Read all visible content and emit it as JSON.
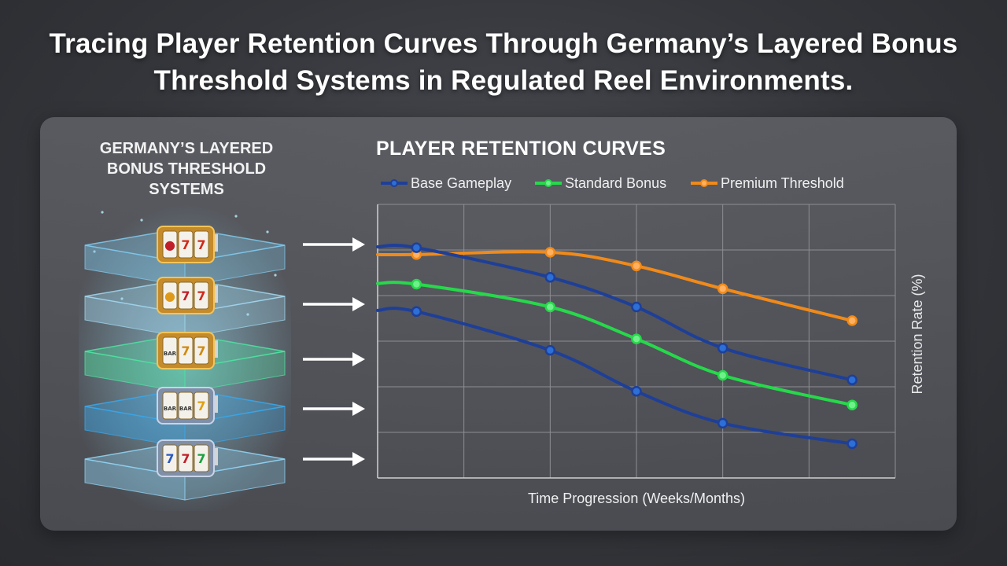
{
  "title": "Tracing Player Retention Curves Through Germany’s Layered Bonus Threshold Systems in Regulated Reel Environments.",
  "left_panel": {
    "title": "GERMANY’S LAYERED BONUS THRESHOLD SYSTEMS",
    "layers": [
      {
        "color": "#7fc6e8",
        "reel": "cherry-777"
      },
      {
        "color": "#9fd3ea",
        "reel": "fruit-777"
      },
      {
        "color": "#4fe0a0",
        "reel": "bar-777"
      },
      {
        "color": "#3aa6e8",
        "reel": "bar-bar-7"
      },
      {
        "color": "#8fd0f0",
        "reel": "777"
      }
    ]
  },
  "chart_data": {
    "type": "line",
    "title": "PLAYER RETENTION CURVES",
    "xlabel": "Time Progression (Weeks/Months)",
    "ylabel": "Retention Rate (%)",
    "x_ticks_shown": false,
    "y_ticks_shown": false,
    "grid": true,
    "legend_position": "top",
    "x": [
      0.45,
      2,
      3,
      4,
      5.5
    ],
    "series": [
      {
        "name": "Base Gameplay",
        "color": "#1f3f97",
        "marker_x": [
          0.45,
          2,
          3,
          4,
          5.5
        ],
        "values": [
          50.5,
          44,
          37.5,
          28.5,
          21.5
        ]
      },
      {
        "name": "Standard Bonus",
        "color": "#27d84b",
        "marker_x": [
          0.45,
          2,
          3,
          4,
          5.5
        ],
        "values": [
          42.5,
          37.5,
          30.5,
          22.5,
          16
        ]
      },
      {
        "name": "Premium Threshold",
        "color": "#f08a1a",
        "marker_x": [
          0.45,
          2,
          3,
          4,
          5.5
        ],
        "values": [
          49,
          49.5,
          46.5,
          41.5,
          34.5
        ]
      }
    ],
    "base_gameplay_dark_curve": {
      "color": "#1f3f97",
      "marker_x": [
        0.45,
        2,
        3,
        4,
        5.5
      ],
      "values": [
        36.5,
        28,
        19,
        12,
        7.5
      ]
    },
    "xlim": [
      0,
      6
    ],
    "ylim": [
      0,
      60
    ]
  }
}
